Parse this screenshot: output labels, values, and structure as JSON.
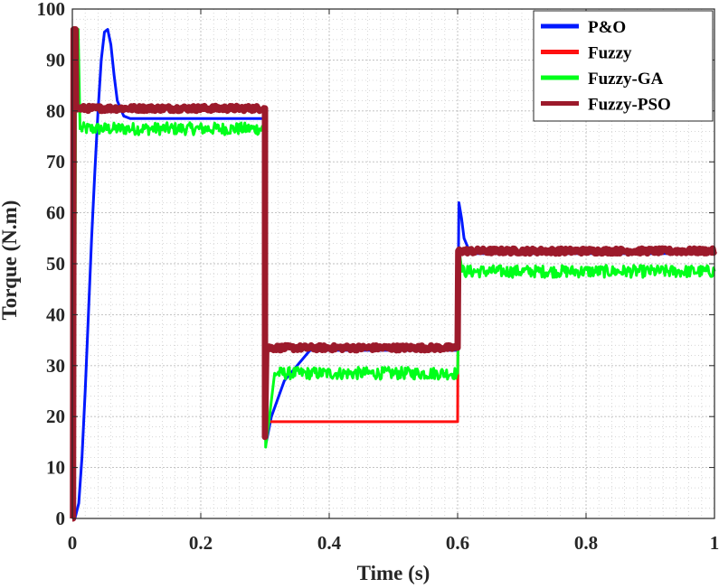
{
  "chart_data": {
    "type": "line",
    "title": "",
    "xlabel": "Time (s)",
    "ylabel": "Torque (N.m)",
    "xlim": [
      0,
      1
    ],
    "ylim": [
      0,
      100
    ],
    "x_ticks": [
      "0",
      "0.2",
      "0.4",
      "0.6",
      "0.8",
      "1"
    ],
    "y_ticks": [
      "0",
      "10",
      "20",
      "30",
      "40",
      "50",
      "60",
      "70",
      "80",
      "90",
      "100"
    ],
    "grid": "major and minor, dotted",
    "legend_position": "top-right",
    "series": [
      {
        "name": "P&O",
        "color": "#0019ff",
        "points": [
          [
            0,
            0
          ],
          [
            0.004,
            0
          ],
          [
            0.01,
            3
          ],
          [
            0.015,
            12
          ],
          [
            0.02,
            25
          ],
          [
            0.025,
            40
          ],
          [
            0.03,
            55
          ],
          [
            0.035,
            68
          ],
          [
            0.04,
            80
          ],
          [
            0.045,
            90
          ],
          [
            0.05,
            95.5
          ],
          [
            0.055,
            96
          ],
          [
            0.06,
            93
          ],
          [
            0.065,
            87
          ],
          [
            0.07,
            82
          ],
          [
            0.08,
            79
          ],
          [
            0.09,
            78.5
          ],
          [
            0.3,
            78.5
          ],
          [
            0.302,
            15
          ],
          [
            0.31,
            20
          ],
          [
            0.33,
            27
          ],
          [
            0.35,
            30
          ],
          [
            0.37,
            33
          ],
          [
            0.6,
            33
          ],
          [
            0.602,
            62
          ],
          [
            0.606,
            59
          ],
          [
            0.61,
            55
          ],
          [
            0.62,
            52
          ],
          [
            1.0,
            52
          ]
        ]
      },
      {
        "name": "Fuzzy",
        "color": "#ff1010",
        "points": [
          [
            0,
            0
          ],
          [
            0.002,
            0
          ],
          [
            0.004,
            96
          ],
          [
            0.007,
            96
          ],
          [
            0.009,
            80.5
          ],
          [
            0.3,
            80.5
          ],
          [
            0.3,
            19
          ],
          [
            0.6,
            19
          ],
          [
            0.601,
            52.5
          ],
          [
            1.0,
            52.5
          ]
        ]
      },
      {
        "name": "Fuzzy-GA",
        "color": "#00ff1a",
        "noise": 1.2,
        "points": [
          [
            0,
            0
          ],
          [
            0.003,
            0
          ],
          [
            0.005,
            80
          ],
          [
            0.007,
            96
          ],
          [
            0.009,
            96
          ],
          [
            0.012,
            76.5
          ],
          [
            0.3,
            76.5
          ],
          [
            0.301,
            14
          ],
          [
            0.307,
            20
          ],
          [
            0.315,
            28.5
          ],
          [
            0.6,
            28.5
          ],
          [
            0.603,
            52
          ],
          [
            0.607,
            48.5
          ],
          [
            1.0,
            48.5
          ]
        ]
      },
      {
        "name": "Fuzzy-PSO",
        "color": "#9c1a2b",
        "noise": 0.5,
        "width": 7,
        "points": [
          [
            0,
            0
          ],
          [
            0.001,
            0
          ],
          [
            0.002,
            96
          ],
          [
            0.005,
            96
          ],
          [
            0.006,
            80.5
          ],
          [
            0.3,
            80.5
          ],
          [
            0.3,
            16
          ],
          [
            0.302,
            33.5
          ],
          [
            0.6,
            33.5
          ],
          [
            0.601,
            52.5
          ],
          [
            1.0,
            52.5
          ]
        ]
      }
    ]
  }
}
